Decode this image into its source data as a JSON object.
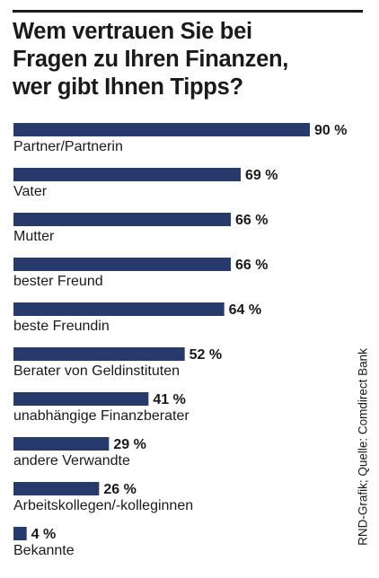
{
  "title_lines": [
    "Wem vertrauen Sie bei",
    "Fragen zu Ihren Finanzen,",
    "wer gibt Ihnen Tipps?"
  ],
  "source": "RND-Grafik; Quelle: Comdirect Bank",
  "colors": {
    "bar": "#263a6b",
    "text": "#1a1a1a",
    "rule": "#1a1a1a"
  },
  "chart_data": {
    "type": "bar",
    "orientation": "horizontal",
    "title": "Wem vertrauen Sie bei Fragen zu Ihren Finanzen, wer gibt Ihnen Tipps?",
    "categories": [
      "Partner/Partnerin",
      "Vater",
      "Mutter",
      "bester Freund",
      "beste Freundin",
      "Berater von Geldinstituten",
      "unabhängige Finanzberater",
      "andere Verwandte",
      "Arbeitskollegen/-kolleginnen",
      "Bekannte"
    ],
    "values": [
      90,
      69,
      66,
      66,
      64,
      52,
      41,
      29,
      26,
      4
    ],
    "value_labels": [
      "90 %",
      "69 %",
      "66 %",
      "66 %",
      "64 %",
      "52 %",
      "41 %",
      "29 %",
      "26 %",
      "4 %"
    ],
    "xlim": [
      0,
      90
    ],
    "grid": false,
    "legend": "none"
  }
}
